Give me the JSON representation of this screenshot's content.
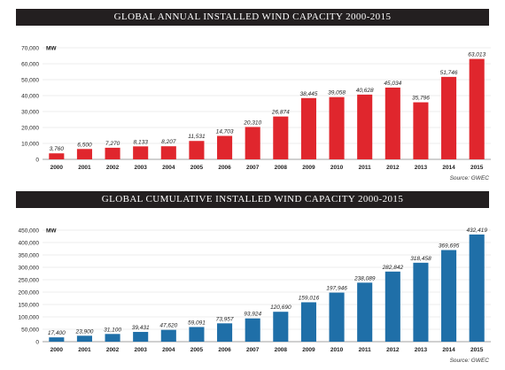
{
  "colors": {
    "annual_bar": "#e0262d",
    "cumulative_bar": "#1f6fa8",
    "title_bg": "#231f20",
    "grid": "#d9d9d9"
  },
  "chart_data": [
    {
      "type": "bar",
      "title": "GLOBAL ANNUAL INSTALLED WIND CAPACITY 2000-2015",
      "unit": "MW",
      "source": "Source: GWEC",
      "categories": [
        "2000",
        "2001",
        "2002",
        "2003",
        "2004",
        "2005",
        "2006",
        "2007",
        "2008",
        "2009",
        "2010",
        "2011",
        "2012",
        "2013",
        "2014",
        "2015"
      ],
      "values": [
        3760,
        6500,
        7270,
        8133,
        8207,
        11531,
        14703,
        20310,
        26874,
        38445,
        39058,
        40628,
        45034,
        35796,
        51746,
        63013
      ],
      "value_labels": [
        "3,760",
        "6,500",
        "7,270",
        "8,133",
        "8,207",
        "11,531",
        "14,703",
        "20,310",
        "26,874",
        "38,445",
        "39,058",
        "40,628",
        "45,034",
        "35,796",
        "51,746",
        "63,013"
      ],
      "ylim": [
        0,
        70000
      ],
      "yticks": [
        0,
        10000,
        20000,
        30000,
        40000,
        50000,
        60000,
        70000
      ],
      "ytick_labels": [
        "0",
        "10,000",
        "20,000",
        "30,000",
        "40,000",
        "50,000",
        "60,000",
        "70,000"
      ],
      "grid": true
    },
    {
      "type": "bar",
      "title": "GLOBAL CUMULATIVE INSTALLED WIND CAPACITY 2000-2015",
      "unit": "MW",
      "source": "Source: GWEC",
      "categories": [
        "2000",
        "2001",
        "2002",
        "2003",
        "2004",
        "2005",
        "2006",
        "2007",
        "2008",
        "2009",
        "2010",
        "2011",
        "2012",
        "2013",
        "2014",
        "2015"
      ],
      "values": [
        17400,
        23900,
        31100,
        39431,
        47620,
        59091,
        73957,
        93924,
        120690,
        159016,
        197946,
        238089,
        282842,
        318458,
        369695,
        432419
      ],
      "value_labels": [
        "17,400",
        "23,900",
        "31,100",
        "39,431",
        "47,620",
        "59,091",
        "73,957",
        "93,924",
        "120,690",
        "159,016",
        "197,946",
        "238,089",
        "282,842",
        "318,458",
        "369,695",
        "432,419"
      ],
      "ylim": [
        0,
        450000
      ],
      "yticks": [
        0,
        50000,
        100000,
        150000,
        200000,
        250000,
        300000,
        350000,
        400000,
        450000
      ],
      "ytick_labels": [
        "0",
        "50,000",
        "100,000",
        "150,000",
        "200,000",
        "250,000",
        "300,000",
        "350,000",
        "400,000",
        "450,000"
      ],
      "grid": true
    }
  ]
}
